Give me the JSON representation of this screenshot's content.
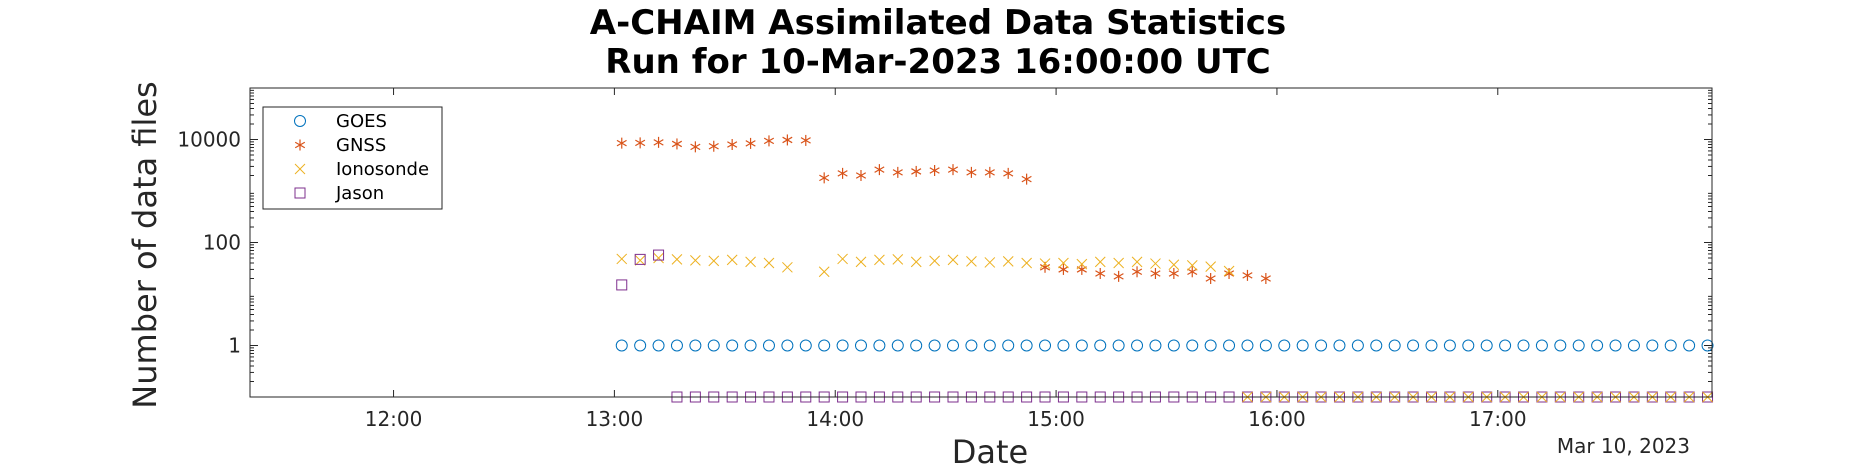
{
  "chart_data": {
    "type": "scatter",
    "title": [
      "A-CHAIM Assimilated Data Statistics",
      "Run for 10-Mar-2023 16:00:00 UTC"
    ],
    "xlabel": "Date",
    "ylabel": "Number of data files",
    "x_units": "hours UTC on 10-Mar-2023",
    "xlim": [
      11.35,
      17.97
    ],
    "yscale": "log",
    "ylim": [
      0.1,
      100000
    ],
    "x_ticks": [
      {
        "value": 12,
        "label": "12:00"
      },
      {
        "value": 13,
        "label": "13:00"
      },
      {
        "value": 14,
        "label": "14:00"
      },
      {
        "value": 15,
        "label": "15:00"
      },
      {
        "value": 16,
        "label": "16:00"
      },
      {
        "value": 17,
        "label": "17:00"
      }
    ],
    "y_ticks": [
      {
        "value": 1,
        "label": "1"
      },
      {
        "value": 100,
        "label": "100"
      },
      {
        "value": 10000,
        "label": "10000"
      }
    ],
    "date_label": "Mar 10, 2023",
    "legend_position": "top-left",
    "grid": false,
    "series": [
      {
        "name": "GOES",
        "marker": "circle",
        "color": "#0072BD",
        "x_start": 13.0333,
        "x_step": 0.08333,
        "count": 60,
        "values": [
          1
        ]
      },
      {
        "name": "GNSS",
        "marker": "asterisk",
        "color": "#D95319",
        "x_start": 13.0333,
        "x_step": 0.08333,
        "values": [
          8500,
          8600,
          8800,
          8200,
          7200,
          7400,
          8000,
          8400,
          9400,
          9800,
          9600,
          1800,
          2200,
          2000,
          2600,
          2300,
          2400,
          2500,
          2600,
          2300,
          2300,
          2200,
          1700,
          33,
          30,
          30,
          25,
          22,
          27,
          25,
          25,
          27,
          20,
          25,
          23,
          20
        ]
      },
      {
        "name": "Ionosonde",
        "marker": "x",
        "color": "#EDB120",
        "x": [
          13.0333,
          13.1167,
          13.2,
          13.2833,
          13.3667,
          13.45,
          13.5333,
          13.6167,
          13.7,
          13.7833,
          13.95,
          14.0333,
          14.1167,
          14.2,
          14.2833,
          14.3667,
          14.45,
          14.5333,
          14.6167,
          14.7,
          14.7833,
          14.8667,
          14.95,
          15.0333,
          15.1167,
          15.2,
          15.2833,
          15.3667,
          15.45,
          15.5333,
          15.6167,
          15.7,
          15.7833
        ],
        "values": [
          48,
          45,
          50,
          47,
          45,
          44,
          46,
          42,
          40,
          33,
          27,
          48,
          42,
          46,
          47,
          42,
          44,
          46,
          43,
          41,
          43,
          40,
          39,
          40,
          38,
          42,
          40,
          42,
          39,
          37,
          36,
          34,
          28
        ]
      },
      {
        "name": "Jason",
        "marker": "square",
        "color": "#7E2F8E",
        "x": [
          13.0333,
          13.1167,
          13.2
        ],
        "values": [
          15,
          47,
          57
        ],
        "bottom_row": {
          "x_start": 13.2833,
          "x_step": 0.08333,
          "count": 57,
          "value": 0.1
        }
      }
    ]
  }
}
